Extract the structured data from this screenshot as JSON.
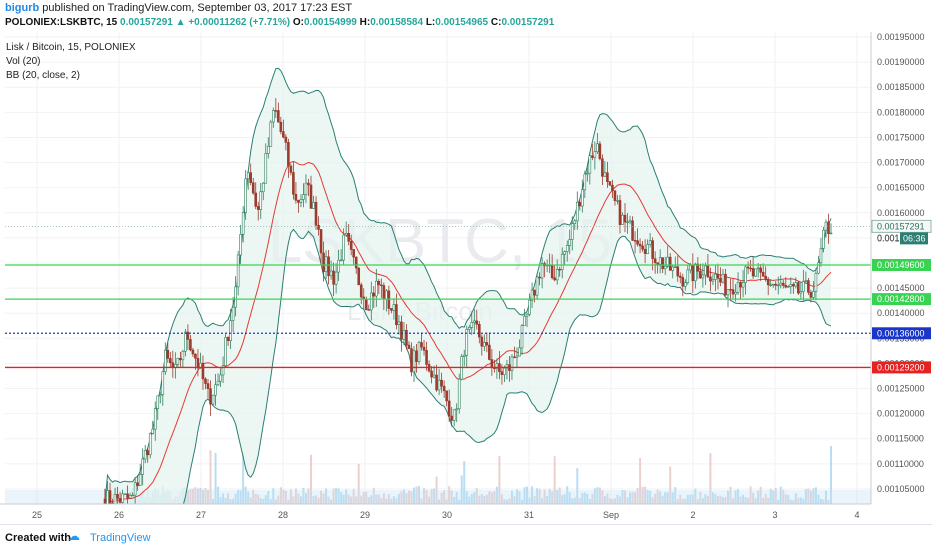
{
  "header": {
    "user": "bigurb",
    "published": " published on TradingView.com, September 03, 2017 17:23 EST",
    "symbol": "POLONIEX:LSKBTC, 15",
    "price": "0.00157291",
    "change": "+0.00011262 (+7.71%)",
    "o_label": "O:",
    "o": "0.00154999",
    "h_label": "H:",
    "h": "0.00158584",
    "l_label": "L:",
    "l": "0.00154965",
    "c_label": "C:",
    "c": "0.00157291"
  },
  "legend": [
    "Lisk / Bitcoin, 15, POLONIEX",
    "Vol (20)",
    "BB (20, close, 2)"
  ],
  "watermark": {
    "main": "LSKBTC, 15",
    "sub": "Lisk / Bitcoin"
  },
  "footer": {
    "created": "Created with",
    "brand": "TradingView"
  },
  "colors": {
    "up": "#26a69a",
    "down": "#ef5350",
    "band": "#2a7f72",
    "ma": "#e53935",
    "green_line": "#39d353",
    "blue_line": "#1a36c8",
    "red_line": "#e52222"
  },
  "chart_data": {
    "type": "candlestick",
    "ylim": [
      0.00102,
      0.00196
    ],
    "yticks": [
      "0.00105000",
      "0.00110000",
      "0.00115000",
      "0.00120000",
      "0.00125000",
      "0.00130000",
      "0.00135000",
      "0.00140000",
      "0.00145000",
      "0.00150000",
      "0.00155000",
      "0.00160000",
      "0.00165000",
      "0.00170000",
      "0.00175000",
      "0.00180000",
      "0.00185000",
      "0.00190000",
      "0.00195000"
    ],
    "xticks": [
      "25",
      "26",
      "27",
      "28",
      "29",
      "30",
      "31",
      "Sep",
      "2",
      "3",
      "4"
    ],
    "price_path": [
      [
        0.0,
        0.00103
      ],
      [
        0.05,
        0.00103
      ],
      [
        0.09,
        0.00118
      ],
      [
        0.11,
        0.00131
      ],
      [
        0.13,
        0.00128
      ],
      [
        0.15,
        0.00136
      ],
      [
        0.17,
        0.0013
      ],
      [
        0.19,
        0.00123
      ],
      [
        0.21,
        0.00127
      ],
      [
        0.22,
        0.00133
      ],
      [
        0.24,
        0.00145
      ],
      [
        0.26,
        0.0017
      ],
      [
        0.28,
        0.0016
      ],
      [
        0.31,
        0.00181
      ],
      [
        0.33,
        0.00173
      ],
      [
        0.35,
        0.00162
      ],
      [
        0.37,
        0.00165
      ],
      [
        0.39,
        0.00158
      ],
      [
        0.4,
        0.0015
      ],
      [
        0.42,
        0.00147
      ],
      [
        0.44,
        0.00155
      ],
      [
        0.46,
        0.00148
      ],
      [
        0.48,
        0.00142
      ],
      [
        0.5,
        0.00146
      ],
      [
        0.52,
        0.00142
      ],
      [
        0.54,
        0.00138
      ],
      [
        0.56,
        0.0013
      ],
      [
        0.58,
        0.00133
      ],
      [
        0.6,
        0.00128
      ],
      [
        0.62,
        0.00124
      ],
      [
        0.64,
        0.00119
      ],
      [
        0.66,
        0.00135
      ],
      [
        0.68,
        0.00137
      ],
      [
        0.7,
        0.00132
      ],
      [
        0.72,
        0.00128
      ],
      [
        0.74,
        0.00129
      ],
      [
        0.76,
        0.00134
      ],
      [
        0.78,
        0.00142
      ],
      [
        0.8,
        0.0015
      ],
      [
        0.82,
        0.00147
      ],
      [
        0.85,
        0.00154
      ],
      [
        0.88,
        0.00168
      ],
      [
        0.9,
        0.00174
      ],
      [
        0.92,
        0.00165
      ],
      [
        0.95,
        0.00158
      ],
      [
        0.98,
        0.00155
      ],
      [
        1.02,
        0.0015
      ],
      [
        1.06,
        0.00147
      ],
      [
        1.1,
        0.00149
      ],
      [
        1.14,
        0.00145
      ],
      [
        1.18,
        0.00148
      ],
      [
        1.22,
        0.00146
      ],
      [
        1.26,
        0.00144
      ],
      [
        1.3,
        0.00145
      ],
      [
        1.32,
        0.00157
      ]
    ],
    "x_range": [
      0.0,
      1.33
    ],
    "hlines": [
      {
        "price": 0.001496,
        "label": "0.00149600",
        "color": "#39d353",
        "style": "solid"
      },
      {
        "price": 0.001428,
        "label": "0.00142800",
        "color": "#39d353",
        "style": "solid"
      },
      {
        "price": 0.00136,
        "label": "0.00136000",
        "color": "#1a36c8",
        "style": "dotted"
      },
      {
        "price": 0.001292,
        "label": "0.00129200",
        "color": "#e52222",
        "style": "solid"
      }
    ],
    "last_price": {
      "label": "0.00157291",
      "countdown": "06:36"
    },
    "last_ma_label": "0.0015",
    "gridlines": true
  }
}
